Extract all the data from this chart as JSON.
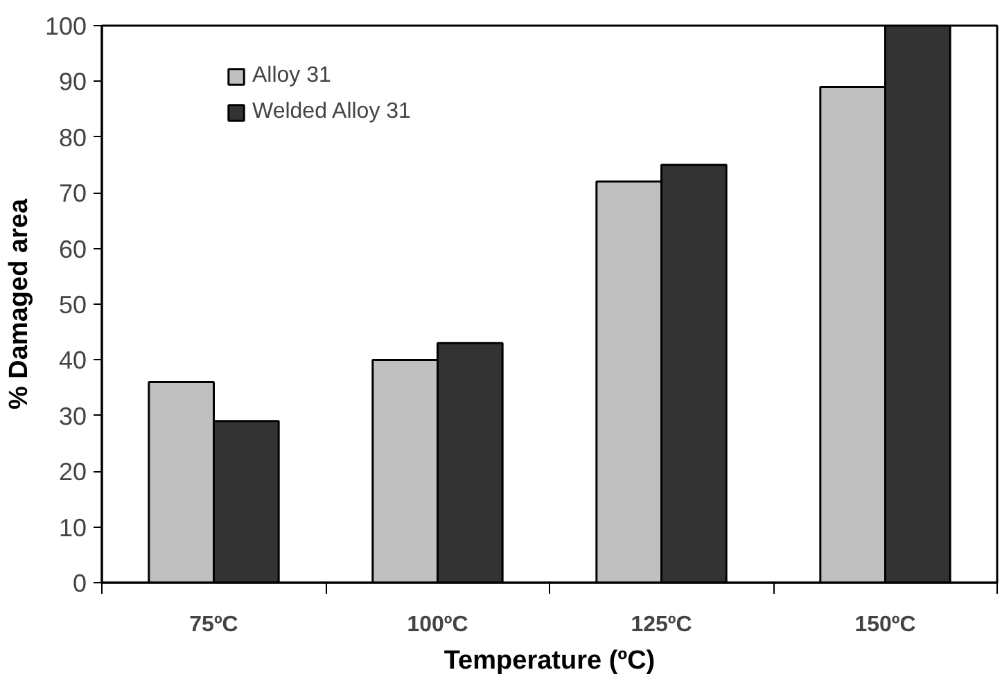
{
  "chart_data": {
    "type": "bar",
    "xlabel": "Temperature (ºC)",
    "ylabel": "% Damaged area",
    "categories": [
      "75ºC",
      "100ºC",
      "125ºC",
      "150ºC"
    ],
    "series": [
      {
        "name": "Alloy 31",
        "color": "#c0c0c0",
        "values": [
          36,
          40,
          72,
          89
        ]
      },
      {
        "name": "Welded Alloy 31",
        "color": "#333333",
        "values": [
          29,
          43,
          75,
          100
        ]
      }
    ],
    "ylim": [
      0,
      100
    ],
    "yticks": [
      0,
      10,
      20,
      30,
      40,
      50,
      60,
      70,
      80,
      90,
      100
    ],
    "grid": false,
    "legend": "top left"
  }
}
